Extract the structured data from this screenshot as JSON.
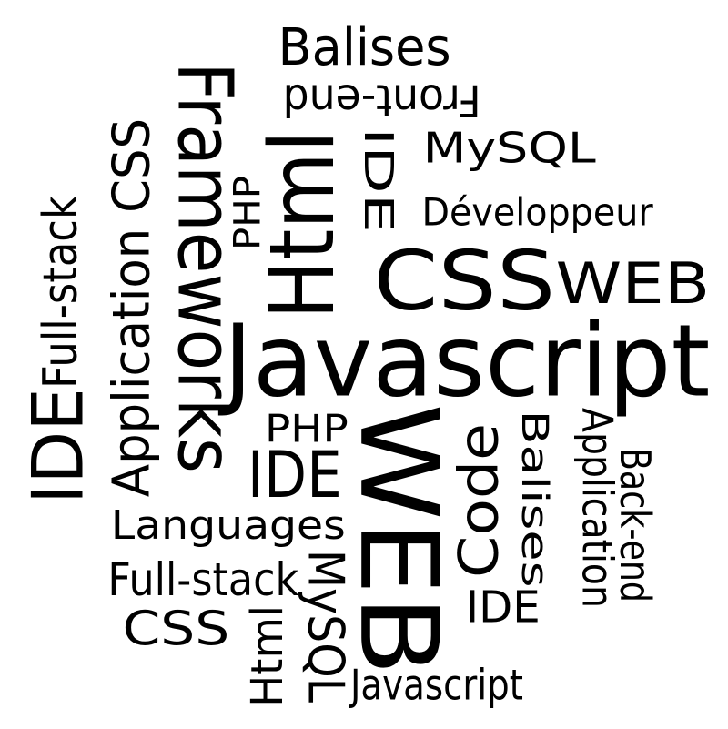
{
  "text_color": "#000000",
  "background_color": "#ffffff",
  "words": [
    {
      "text": "Balises",
      "orientation": "horizontal"
    },
    {
      "text": "Front-end",
      "orientation": "upside-down"
    },
    {
      "text": "Frameworks",
      "orientation": "rotated-clockwise"
    },
    {
      "text": "Html",
      "orientation": "rotated-counterclockwise"
    },
    {
      "text": "IDE",
      "orientation": "rotated-clockwise"
    },
    {
      "text": "MySQL",
      "orientation": "horizontal"
    },
    {
      "text": "Application CSS",
      "orientation": "rotated-counterclockwise"
    },
    {
      "text": "PHP",
      "orientation": "rotated-counterclockwise"
    },
    {
      "text": "Développeur",
      "orientation": "horizontal"
    },
    {
      "text": "Full-stack",
      "orientation": "rotated-counterclockwise"
    },
    {
      "text": "CSS",
      "orientation": "horizontal"
    },
    {
      "text": "WEB",
      "orientation": "horizontal"
    },
    {
      "text": "Javascript",
      "orientation": "horizontal"
    },
    {
      "text": "IDE",
      "orientation": "rotated-counterclockwise"
    },
    {
      "text": "PHP",
      "orientation": "horizontal"
    },
    {
      "text": "IDE",
      "orientation": "horizontal"
    },
    {
      "text": "WEB",
      "orientation": "rotated-clockwise"
    },
    {
      "text": "Code",
      "orientation": "rotated-counterclockwise"
    },
    {
      "text": "Balises",
      "orientation": "rotated-clockwise"
    },
    {
      "text": "Application",
      "orientation": "rotated-clockwise"
    },
    {
      "text": "Back-end",
      "orientation": "rotated-clockwise"
    },
    {
      "text": "Languages",
      "orientation": "horizontal"
    },
    {
      "text": "Full-stack",
      "orientation": "horizontal"
    },
    {
      "text": "CSS",
      "orientation": "horizontal"
    },
    {
      "text": "MySQL",
      "orientation": "rotated-clockwise"
    },
    {
      "text": "Html",
      "orientation": "rotated-counterclockwise"
    },
    {
      "text": "IDE",
      "orientation": "horizontal"
    },
    {
      "text": "Javascript",
      "orientation": "horizontal"
    }
  ]
}
